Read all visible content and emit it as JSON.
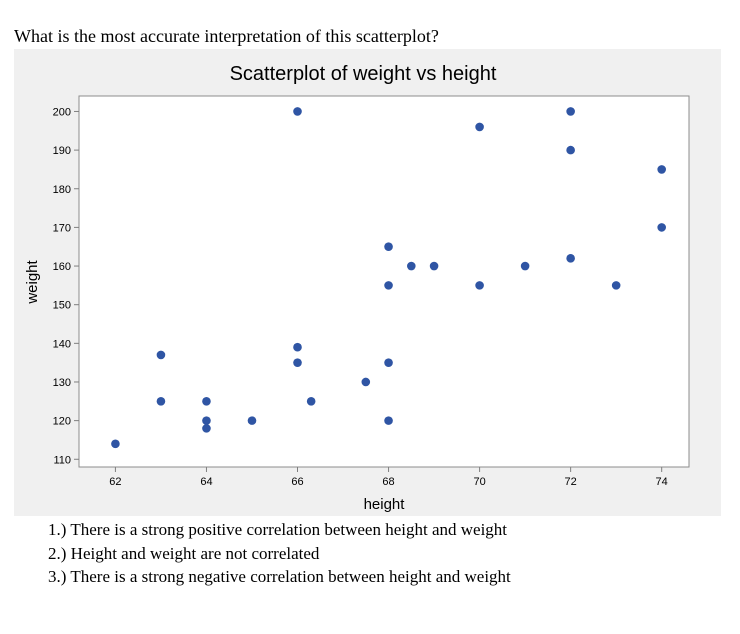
{
  "question": "What is the most accurate interpretation of this scatterplot?",
  "answers": [
    "1.) There is a strong positive correlation between height and weight",
    "2.) Height and weight are not correlated",
    "3.) There is a strong negative correlation between height and weight"
  ],
  "colors": {
    "marker": "#2f55a4",
    "figure_bg": "#f0f0f0",
    "plot_bg": "#ffffff",
    "axis": "#7f7f7f"
  },
  "chart_data": {
    "type": "scatter",
    "title": "Scatterplot of weight vs height",
    "xlabel": "height",
    "ylabel": "weight",
    "xlim": [
      61.2,
      74.6
    ],
    "ylim": [
      108,
      204
    ],
    "xticks": [
      62,
      64,
      66,
      68,
      70,
      72,
      74
    ],
    "yticks": [
      110,
      120,
      130,
      140,
      150,
      160,
      170,
      180,
      190,
      200
    ],
    "grid": false,
    "points": [
      {
        "x": 62,
        "y": 114
      },
      {
        "x": 63,
        "y": 137
      },
      {
        "x": 63,
        "y": 125
      },
      {
        "x": 64,
        "y": 125
      },
      {
        "x": 64,
        "y": 120
      },
      {
        "x": 64,
        "y": 118
      },
      {
        "x": 65,
        "y": 120
      },
      {
        "x": 66,
        "y": 200
      },
      {
        "x": 66,
        "y": 139
      },
      {
        "x": 66,
        "y": 135
      },
      {
        "x": 66.3,
        "y": 125
      },
      {
        "x": 67.5,
        "y": 130
      },
      {
        "x": 68,
        "y": 165
      },
      {
        "x": 68,
        "y": 155
      },
      {
        "x": 68,
        "y": 135
      },
      {
        "x": 68,
        "y": 120
      },
      {
        "x": 68.5,
        "y": 160
      },
      {
        "x": 69,
        "y": 160
      },
      {
        "x": 70,
        "y": 196
      },
      {
        "x": 70,
        "y": 155
      },
      {
        "x": 71,
        "y": 160
      },
      {
        "x": 72,
        "y": 200
      },
      {
        "x": 72,
        "y": 190
      },
      {
        "x": 72,
        "y": 162
      },
      {
        "x": 73,
        "y": 155
      },
      {
        "x": 74,
        "y": 185
      },
      {
        "x": 74,
        "y": 170
      }
    ]
  }
}
